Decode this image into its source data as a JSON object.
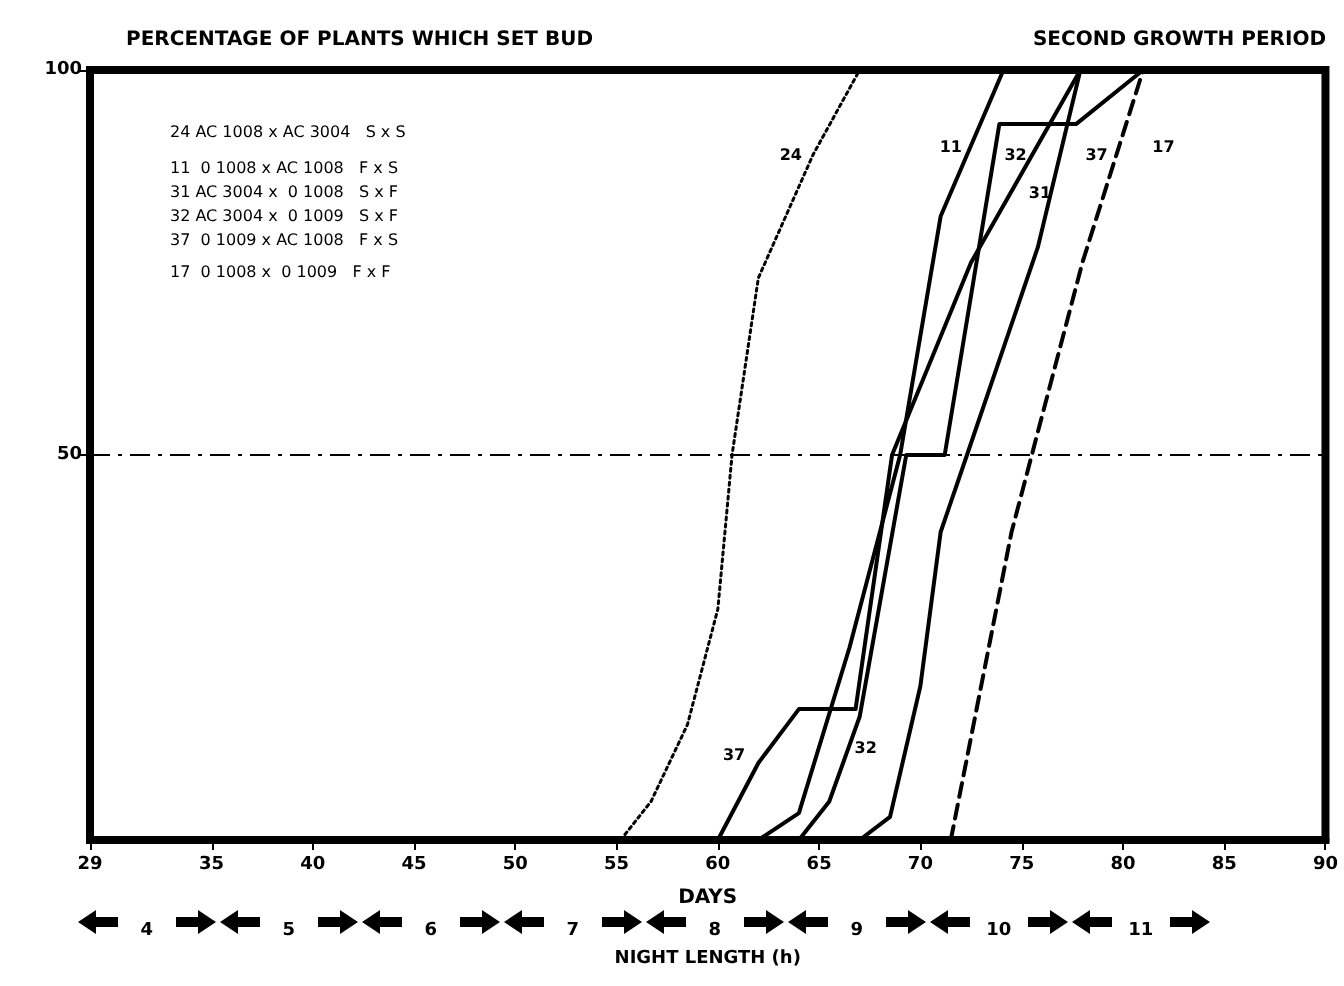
{
  "chart_data": {
    "type": "line",
    "title": "PERCENTAGE OF PLANTS WHICH SET BUD",
    "subtitle": "SECOND GROWTH PERIOD",
    "xlabel": "DAYS",
    "x2label": "NIGHT LENGTH (h)",
    "xlim": [
      29,
      90
    ],
    "xticks": [
      29,
      35,
      40,
      45,
      50,
      55,
      60,
      65,
      70,
      75,
      80,
      85,
      90
    ],
    "x2lim": [
      3.6,
      12.3
    ],
    "x2ticks": [
      4,
      5,
      6,
      7,
      8,
      9,
      10,
      11
    ],
    "ylim": [
      0,
      100
    ],
    "yticks": [
      50,
      100
    ],
    "grid": false,
    "marker": "none",
    "ref_lines": [
      {
        "axis": "y",
        "value": 50,
        "line_style": "dashdot",
        "color": "#000000"
      }
    ],
    "annotations": [
      "24 AC 1008 x AC 3004   S x S",
      "11  0 1008 x AC 1008   F x S",
      "31 AC 3004 x  0 1008   S x F",
      "32 AC 3004 x  0 1009   S x F",
      "37  0 1009 x AC 1008   F x S",
      "17  0 1008 x  0 1009   F x F",
      {
        "text": "24",
        "x": 63.6,
        "y": 89
      },
      {
        "text": "11",
        "x": 71.5,
        "y": 90
      },
      {
        "text": "32",
        "x": 74.7,
        "y": 89
      },
      {
        "text": "31",
        "x": 75.9,
        "y": 84
      },
      {
        "text": "37",
        "x": 78.7,
        "y": 89
      },
      {
        "text": "17",
        "x": 82,
        "y": 90
      },
      {
        "text": "37",
        "x": 60.8,
        "y": 11
      },
      {
        "text": "32",
        "x": 67.3,
        "y": 12
      }
    ],
    "series": [
      {
        "color": "#000000",
        "line_style": "dotted",
        "x": [
          55.2,
          56.7,
          58.5,
          60,
          60.7,
          62,
          64.7,
          67
        ],
        "values": [
          0,
          5,
          15,
          30,
          50,
          73,
          89,
          100
        ]
      },
      {
        "color": "#000000",
        "line_style": "solid",
        "x": [
          62,
          64,
          66.5,
          69,
          71,
          74.1
        ],
        "values": [
          0,
          3.5,
          25,
          50,
          81,
          100
        ]
      },
      {
        "color": "#000000",
        "line_style": "solid",
        "x": [
          67,
          68.5,
          70,
          71,
          72.3,
          75.8,
          77.9
        ],
        "values": [
          0,
          3,
          20,
          40,
          50,
          77,
          100
        ]
      },
      {
        "color": "#000000",
        "line_style": "solid",
        "x": [
          64,
          65.5,
          67,
          69.3,
          71.2,
          73.9,
          77.7,
          81
        ],
        "values": [
          0,
          5,
          16,
          50,
          50,
          93,
          93,
          100
        ]
      },
      {
        "color": "#000000",
        "line_style": "solid",
        "x": [
          60,
          62,
          64,
          66.8,
          68.6,
          72.5,
          77.9
        ],
        "values": [
          0,
          10,
          17,
          17,
          50,
          75,
          100
        ]
      },
      {
        "color": "#000000",
        "line_style": "dashed",
        "x": [
          71.5,
          73,
          74.5,
          76,
          78,
          81
        ],
        "values": [
          0,
          20,
          40,
          55,
          75,
          100
        ]
      }
    ]
  }
}
